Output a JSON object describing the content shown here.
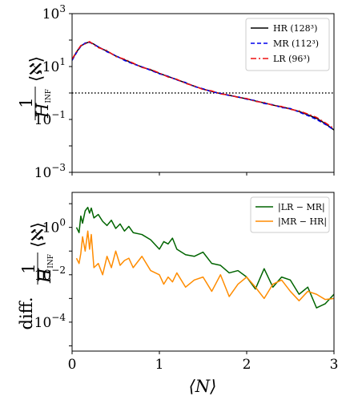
{
  "chart_data": [
    {
      "type": "line",
      "ylabel_frac": "1/H_INF",
      "ylabel_sym": "⟨ℵ⟩",
      "yscale": "log",
      "xlim": [
        0,
        3
      ],
      "ylim": [
        0.001,
        1000
      ],
      "yticks": [
        {
          "value": 0.001,
          "base": "10",
          "exp": "−3"
        },
        {
          "value": 0.1,
          "base": "10",
          "exp": "−1"
        },
        {
          "value": 10,
          "base": "10",
          "exp": "1"
        },
        {
          "value": 1000,
          "base": "10",
          "exp": "3"
        }
      ],
      "reference_line": {
        "y": 1,
        "style": "dotted",
        "color": "#000000"
      },
      "legend_position": "top-right",
      "series": [
        {
          "name": "HR (128³)",
          "color": "#000000",
          "dash": "solid",
          "x": [
            0.0,
            0.05,
            0.1,
            0.15,
            0.2,
            0.25,
            0.3,
            0.4,
            0.5,
            0.6,
            0.7,
            0.8,
            0.9,
            1.0,
            1.1,
            1.2,
            1.3,
            1.4,
            1.5,
            1.6,
            1.7,
            1.8,
            1.9,
            2.0,
            2.1,
            2.2,
            2.3,
            2.4,
            2.5,
            2.6,
            2.7,
            2.8,
            2.9,
            3.0
          ],
          "y": [
            18,
            35,
            60,
            75,
            85,
            70,
            55,
            38,
            25,
            18,
            13,
            9.5,
            7.5,
            5.5,
            4.2,
            3.2,
            2.4,
            1.8,
            1.4,
            1.15,
            0.95,
            0.82,
            0.7,
            0.6,
            0.5,
            0.42,
            0.35,
            0.3,
            0.25,
            0.2,
            0.15,
            0.11,
            0.07,
            0.04
          ]
        },
        {
          "name": "MR (112³)",
          "color": "#0000ee",
          "dash": "dashed",
          "x": [
            0.0,
            0.05,
            0.1,
            0.15,
            0.2,
            0.25,
            0.3,
            0.4,
            0.5,
            0.6,
            0.7,
            0.8,
            0.9,
            1.0,
            1.1,
            1.2,
            1.3,
            1.4,
            1.5,
            1.6,
            1.7,
            1.8,
            1.9,
            2.0,
            2.1,
            2.2,
            2.3,
            2.4,
            2.5,
            2.6,
            2.7,
            2.8,
            2.9,
            3.0
          ],
          "y": [
            17,
            33,
            58,
            78,
            82,
            68,
            56,
            36,
            26,
            17,
            12.5,
            9.8,
            7.2,
            5.3,
            4.3,
            3.1,
            2.5,
            1.75,
            1.45,
            1.1,
            0.97,
            0.8,
            0.72,
            0.58,
            0.52,
            0.4,
            0.36,
            0.28,
            0.26,
            0.19,
            0.14,
            0.1,
            0.065,
            0.04
          ]
        },
        {
          "name": "LR (96³)",
          "color": "#ee1111",
          "dash": "dashdot",
          "x": [
            0.0,
            0.05,
            0.1,
            0.15,
            0.2,
            0.25,
            0.3,
            0.4,
            0.5,
            0.6,
            0.7,
            0.8,
            0.9,
            1.0,
            1.1,
            1.2,
            1.3,
            1.4,
            1.5,
            1.6,
            1.7,
            1.8,
            1.9,
            2.0,
            2.1,
            2.2,
            2.3,
            2.4,
            2.5,
            2.6,
            2.7,
            2.8,
            2.9,
            3.0
          ],
          "y": [
            19,
            36,
            62,
            72,
            88,
            66,
            52,
            40,
            24,
            19,
            13.5,
            9.2,
            7.8,
            5.7,
            4.0,
            3.3,
            2.3,
            1.85,
            1.35,
            1.2,
            0.92,
            0.85,
            0.68,
            0.62,
            0.48,
            0.44,
            0.34,
            0.31,
            0.24,
            0.21,
            0.16,
            0.12,
            0.075,
            0.045
          ]
        }
      ]
    },
    {
      "type": "line",
      "ylabel_prefix": "diff.",
      "ylabel_frac": "1/H_INF",
      "ylabel_sym": "⟨ℵ⟩",
      "xlabel": "⟨N⟩",
      "yscale": "log",
      "xlim": [
        0,
        3
      ],
      "ylim": [
        6e-06,
        30
      ],
      "xticks": [
        {
          "value": 0,
          "label": "0"
        },
        {
          "value": 1,
          "label": "1"
        },
        {
          "value": 2,
          "label": "2"
        },
        {
          "value": 3,
          "label": "3"
        }
      ],
      "yticks": [
        {
          "value": 0.0001,
          "base": "10",
          "exp": "−4"
        },
        {
          "value": 0.01,
          "base": "10",
          "exp": "−2"
        },
        {
          "value": 1,
          "base": "10",
          "exp": "0"
        }
      ],
      "legend_position": "top-right",
      "series": [
        {
          "name": "|LR − MR|",
          "color": "#006400",
          "x": [
            0.05,
            0.08,
            0.1,
            0.12,
            0.15,
            0.18,
            0.2,
            0.22,
            0.25,
            0.3,
            0.35,
            0.4,
            0.45,
            0.5,
            0.55,
            0.6,
            0.65,
            0.7,
            0.8,
            0.9,
            1.0,
            1.05,
            1.1,
            1.15,
            1.2,
            1.3,
            1.4,
            1.5,
            1.6,
            1.7,
            1.8,
            1.9,
            2.0,
            2.1,
            2.2,
            2.3,
            2.4,
            2.5,
            2.6,
            2.7,
            2.8,
            2.9,
            3.0
          ],
          "y": [
            1.0,
            0.6,
            3.0,
            1.5,
            5.0,
            7.0,
            4.0,
            6.5,
            2.5,
            3.5,
            1.8,
            1.2,
            2.0,
            0.9,
            1.4,
            0.7,
            1.1,
            0.6,
            0.5,
            0.3,
            0.12,
            0.25,
            0.2,
            0.35,
            0.12,
            0.07,
            0.06,
            0.09,
            0.03,
            0.025,
            0.012,
            0.015,
            0.008,
            0.0025,
            0.018,
            0.003,
            0.008,
            0.006,
            0.0015,
            0.003,
            0.0004,
            0.0006,
            0.0015
          ]
        },
        {
          "name": "|MR − HR|",
          "color": "#ff8c00",
          "x": [
            0.05,
            0.08,
            0.1,
            0.12,
            0.15,
            0.18,
            0.2,
            0.22,
            0.25,
            0.3,
            0.35,
            0.4,
            0.45,
            0.5,
            0.55,
            0.6,
            0.65,
            0.7,
            0.8,
            0.9,
            1.0,
            1.05,
            1.1,
            1.15,
            1.2,
            1.3,
            1.4,
            1.5,
            1.6,
            1.7,
            1.8,
            1.9,
            2.0,
            2.1,
            2.2,
            2.3,
            2.4,
            2.5,
            2.6,
            2.7,
            2.8,
            2.9,
            3.0
          ],
          "y": [
            0.05,
            0.03,
            0.08,
            0.4,
            0.1,
            0.7,
            0.12,
            0.5,
            0.02,
            0.03,
            0.01,
            0.06,
            0.02,
            0.1,
            0.025,
            0.04,
            0.05,
            0.02,
            0.06,
            0.015,
            0.01,
            0.004,
            0.008,
            0.005,
            0.012,
            0.003,
            0.006,
            0.008,
            0.002,
            0.01,
            0.0012,
            0.004,
            0.008,
            0.003,
            0.001,
            0.004,
            0.006,
            0.002,
            0.0008,
            0.002,
            0.0015,
            0.0009,
            0.001
          ]
        }
      ]
    }
  ]
}
